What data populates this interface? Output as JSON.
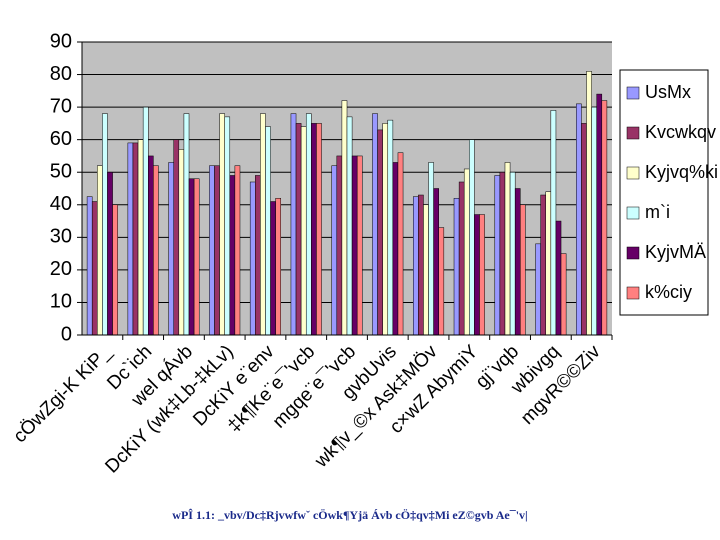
{
  "chart_data": {
    "type": "bar",
    "categories": [
      "cÖwZgi-K KiP_",
      "Dc`ich",
      "wel qÁvb",
      "DcKiY (wk‡Lb-‡kLv)",
      "DcKiY e¨env",
      "‡k¶Ke¨e¯'vcb",
      "mgqe¨e¯'vcb",
      "gvbUvis",
      "wk¶v_©x Ask‡MÖv",
      "c×wZ AbymiY",
      "gj¨vqb",
      "wbivgq",
      "mgvR©©Ziv"
    ],
    "series": [
      {
        "name": "UsMx",
        "color": "#9999ff",
        "values": [
          42.5,
          59,
          53,
          52,
          47,
          68,
          52,
          68,
          42.5,
          42,
          49,
          28,
          71
        ]
      },
      {
        "name": "Kvcwkqv",
        "color": "#993366",
        "values": [
          41,
          59,
          60,
          52,
          49,
          65,
          55,
          63,
          43,
          47,
          50,
          43,
          65
        ]
      },
      {
        "name": "Kyjvq%ki",
        "color": "#ffffcc",
        "values": [
          52,
          60,
          57,
          68,
          68,
          64,
          72,
          65,
          40,
          51,
          53,
          44,
          81
        ]
      },
      {
        "name": "m`i",
        "color": "#ccffff",
        "values": [
          68,
          70,
          68,
          67,
          64,
          68,
          67,
          66,
          53,
          60,
          50,
          69,
          70
        ]
      },
      {
        "name": "KyjvMÄ",
        "color": "#660066",
        "values": [
          50,
          55,
          48,
          49,
          41,
          65,
          55,
          53,
          45,
          37,
          45,
          35,
          74
        ]
      },
      {
        "name": "k%ciy",
        "color": "#ff8080",
        "values": [
          40,
          52,
          48,
          52,
          42,
          65,
          55,
          56,
          33,
          37,
          40,
          25,
          72
        ]
      }
    ],
    "ylim": [
      0,
      90
    ],
    "yticks": [
      0,
      10,
      20,
      30,
      40,
      50,
      60,
      70,
      80,
      90
    ],
    "grid": true,
    "caption": "wPÎ 1.1: _vbv/Dc‡Rjvwfwˇ cÖwk¶Yjä Ávb cÖ‡qv‡Mi eZ©gvb Ae¯'v|"
  }
}
